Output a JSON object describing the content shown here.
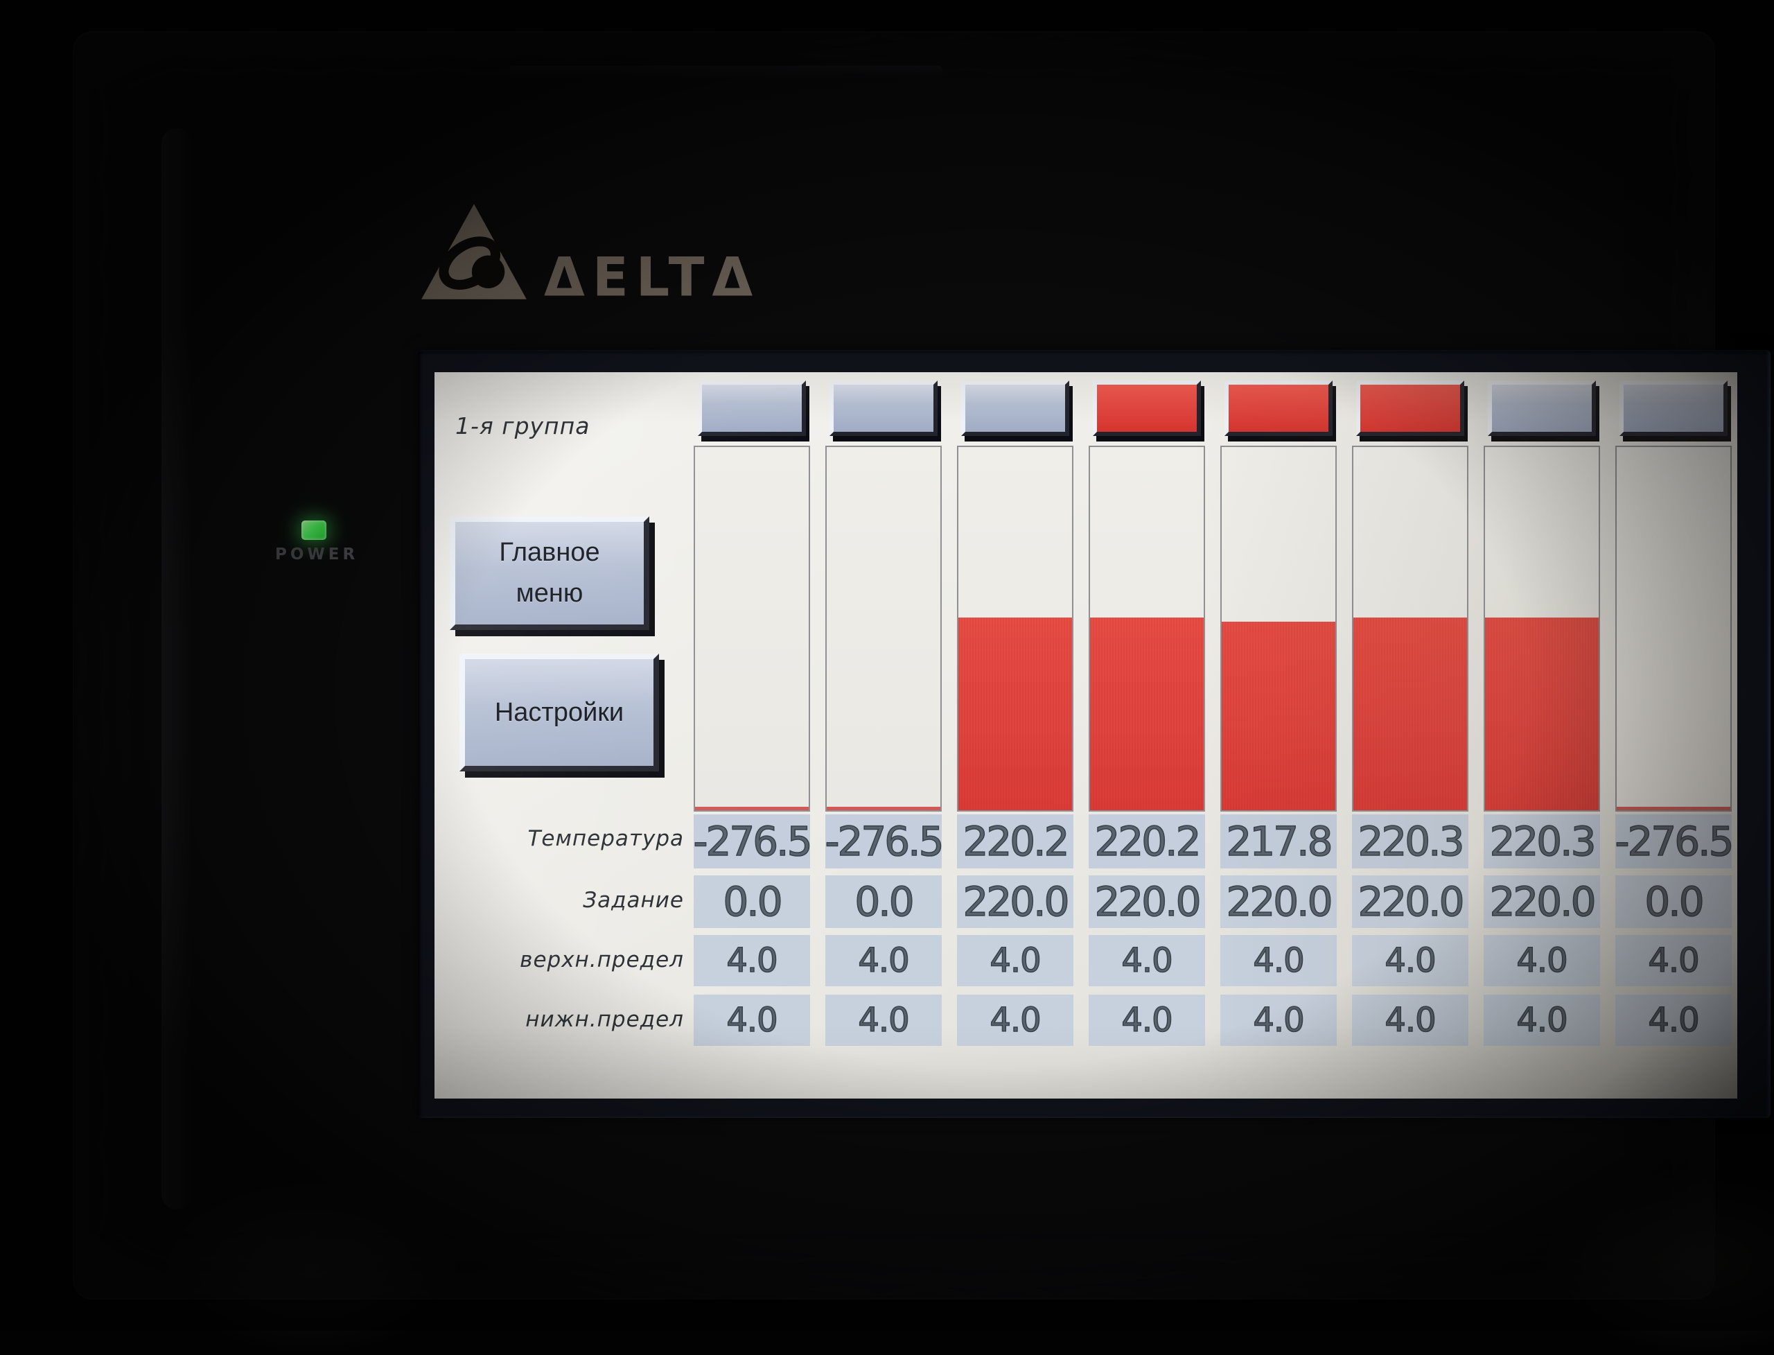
{
  "device": {
    "brand_wordmark": "ΔELTΔ",
    "power_label": "POWER",
    "power_led_color": "#3fd84a"
  },
  "screen": {
    "group_label": "1-я группа",
    "nav_buttons": {
      "main_menu_line1": "Главное",
      "main_menu_line2": "меню",
      "settings": "Настройки"
    },
    "row_labels": {
      "temperature": "Температура",
      "setpoint": "Задание",
      "upper_limit": "верхн.предел",
      "lower_limit": "нижн.предел"
    },
    "columns": [
      {
        "indicator": "off",
        "bar_pct": 0,
        "temperature": "-276.5",
        "setpoint": "0.0",
        "upper_limit": "4.0",
        "lower_limit": "4.0"
      },
      {
        "indicator": "off",
        "bar_pct": 0,
        "temperature": "-276.5",
        "setpoint": "0.0",
        "upper_limit": "4.0",
        "lower_limit": "4.0"
      },
      {
        "indicator": "off",
        "bar_pct": 53,
        "temperature": "220.2",
        "setpoint": "220.0",
        "upper_limit": "4.0",
        "lower_limit": "4.0"
      },
      {
        "indicator": "on",
        "bar_pct": 53,
        "temperature": "220.2",
        "setpoint": "220.0",
        "upper_limit": "4.0",
        "lower_limit": "4.0"
      },
      {
        "indicator": "on",
        "bar_pct": 52,
        "temperature": "217.8",
        "setpoint": "220.0",
        "upper_limit": "4.0",
        "lower_limit": "4.0"
      },
      {
        "indicator": "on",
        "bar_pct": 53,
        "temperature": "220.3",
        "setpoint": "220.0",
        "upper_limit": "4.0",
        "lower_limit": "4.0"
      },
      {
        "indicator": "off",
        "bar_pct": 53,
        "temperature": "220.3",
        "setpoint": "220.0",
        "upper_limit": "4.0",
        "lower_limit": "4.0"
      },
      {
        "indicator": "off",
        "bar_pct": 0,
        "temperature": "-276.5",
        "setpoint": "0.0",
        "upper_limit": "4.0",
        "lower_limit": "4.0"
      }
    ],
    "colors": {
      "bar_red": "#e2443e",
      "indicator_on": "#e2443e",
      "indicator_off": "#b2bcd0",
      "cell_bg": "#c7d1de"
    }
  }
}
